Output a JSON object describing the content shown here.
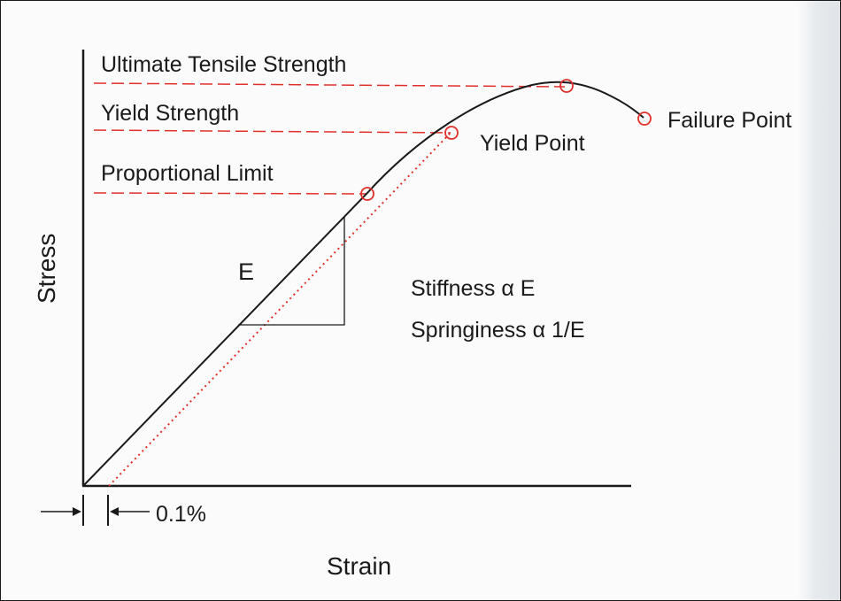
{
  "diagram": {
    "axes": {
      "y_label": "Stress",
      "x_label": "Strain"
    },
    "reference_lines": [
      {
        "label": "Ultimate Tensile Strength"
      },
      {
        "label": "Yield Strength"
      },
      {
        "label": "Proportional Limit"
      }
    ],
    "points": {
      "yield": "Yield Point",
      "failure": "Failure Point"
    },
    "modulus_symbol": "E",
    "relations": {
      "stiffness": "Stiffness α E",
      "springiness": "Springiness α 1/E"
    },
    "offset_label": "0.1%",
    "colors": {
      "curve": "#1a1a1a",
      "reference": "#e0302a",
      "marker": "#e0302a"
    }
  }
}
